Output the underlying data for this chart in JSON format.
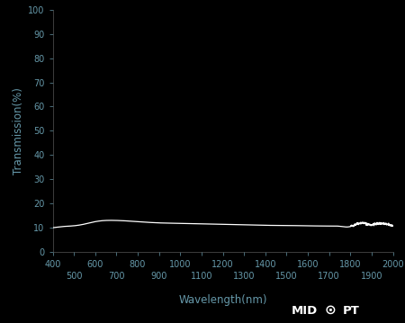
{
  "background_color": "#000000",
  "axes_color": "#000000",
  "tick_color": "#6699aa",
  "label_color": "#6699aa",
  "line_color": "#ffffff",
  "xlabel": "Wavelength(nm)",
  "ylabel": "Transmission(%)",
  "xmin": 400,
  "xmax": 2000,
  "ymin": 0,
  "ymax": 100,
  "xticks_major": [
    400,
    600,
    800,
    1000,
    1200,
    1400,
    1600,
    1800,
    2000
  ],
  "xticks_minor": [
    500,
    700,
    900,
    1100,
    1300,
    1500,
    1700,
    1900
  ],
  "yticks": [
    0,
    10,
    20,
    30,
    40,
    50,
    60,
    70,
    80,
    90,
    100
  ],
  "tick_fontsize": 7,
  "label_fontsize": 8.5,
  "spine_color": "#555555",
  "curve_x": [
    400,
    420,
    450,
    500,
    550,
    600,
    650,
    700,
    750,
    800,
    900,
    1000,
    1100,
    1200,
    1300,
    1400,
    1500,
    1600,
    1700,
    1750,
    1800,
    1820,
    1840,
    1860,
    1880,
    1900,
    1920,
    1940,
    1960,
    1980,
    2000
  ],
  "curve_y": [
    10.0,
    10.2,
    10.5,
    10.8,
    11.5,
    12.5,
    13.0,
    13.0,
    12.8,
    12.5,
    12.0,
    11.8,
    11.6,
    11.4,
    11.2,
    11.0,
    10.9,
    10.8,
    10.7,
    10.6,
    10.5,
    11.2,
    11.8,
    12.0,
    11.5,
    11.2,
    11.5,
    11.8,
    11.6,
    11.2,
    11.0
  ]
}
